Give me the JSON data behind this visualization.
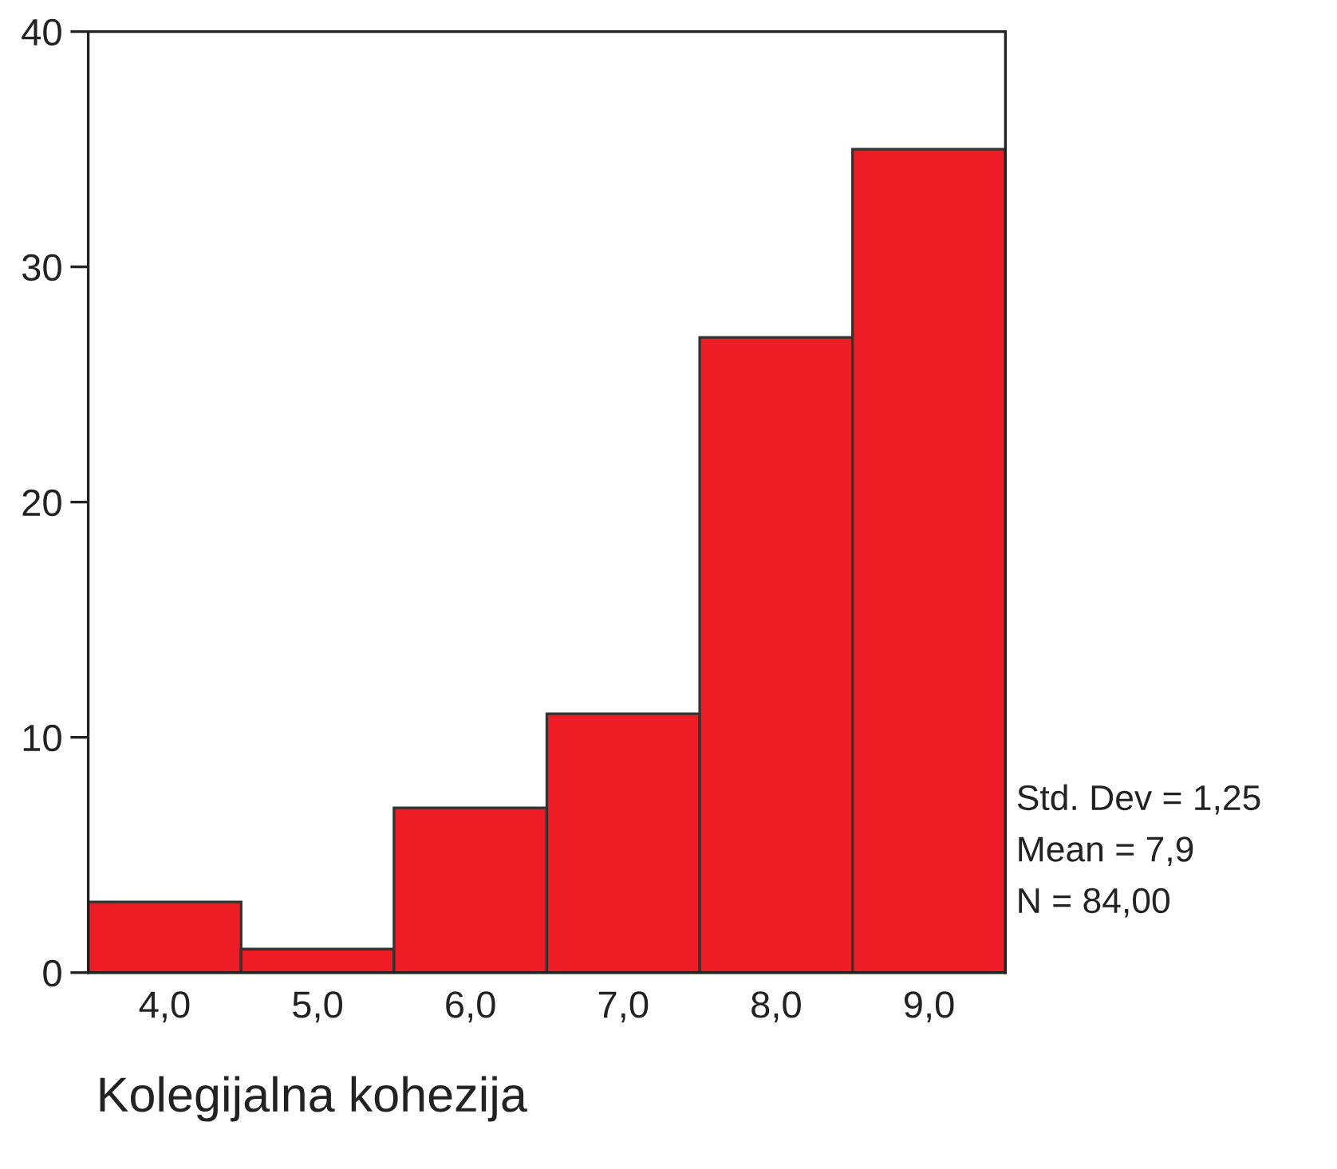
{
  "chart_data": {
    "type": "histogram",
    "xlabel": "Kolegijalna kohezija",
    "bins": [
      3.5,
      4.5,
      5.5,
      6.5,
      7.5,
      8.5,
      9.5
    ],
    "values": [
      3,
      1,
      7,
      11,
      27,
      35
    ],
    "color": "#ee1c24",
    "xlim": [
      3.5,
      9.5
    ],
    "xticks": [
      {
        "value": 4,
        "label": "4,0"
      },
      {
        "value": 5,
        "label": "5,0"
      },
      {
        "value": 6,
        "label": "6,0"
      },
      {
        "value": 7,
        "label": "7,0"
      },
      {
        "value": 8,
        "label": "8,0"
      },
      {
        "value": 9,
        "label": "9,0"
      }
    ],
    "ylim": [
      0,
      40
    ],
    "yticks": [
      0,
      10,
      20,
      30,
      40
    ],
    "annotations": [
      "Std. Dev = 1,25",
      "Mean = 7,9",
      "N = 84,00"
    ]
  }
}
